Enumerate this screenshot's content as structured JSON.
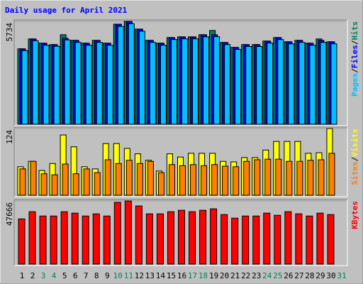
{
  "chart_data": [
    {
      "type": "bar",
      "title": "Daily usage for April 2021",
      "ylim": [
        0,
        5734
      ],
      "yticks": [
        5734
      ],
      "legend_separator": "/",
      "series": [
        {
          "name": "Hits",
          "color": "#00805c",
          "values": [
            4202,
            4752,
            4516,
            4438,
            4987,
            4673,
            4516,
            4673,
            4516,
            5576,
            5734,
            5301,
            4673,
            4516,
            4830,
            4869,
            4869,
            4987,
            5223,
            4555,
            4280,
            4438,
            4438,
            4634,
            4830,
            4595,
            4673,
            4516,
            4752,
            4595,
            null
          ]
        },
        {
          "name": "Files",
          "color": "#0000ff",
          "values": [
            4202,
            4752,
            4516,
            4438,
            4791,
            4673,
            4516,
            4673,
            4516,
            5576,
            5734,
            5301,
            4673,
            4516,
            4830,
            4869,
            4869,
            4987,
            4987,
            4555,
            4280,
            4438,
            4438,
            4634,
            4830,
            4595,
            4673,
            4516,
            4673,
            4595,
            null
          ]
        },
        {
          "name": "Pages",
          "color": "#00c0ff",
          "values": [
            4100,
            4650,
            4400,
            4340,
            4700,
            4560,
            4400,
            4560,
            4400,
            5450,
            5600,
            5180,
            4560,
            4400,
            4720,
            4760,
            4760,
            4870,
            4880,
            4440,
            4170,
            4330,
            4330,
            4520,
            4720,
            4480,
            4560,
            4400,
            4560,
            4480,
            null
          ]
        }
      ]
    },
    {
      "type": "bar",
      "ylim": [
        0,
        124
      ],
      "yticks": [
        124
      ],
      "legend_separator": "/",
      "series": [
        {
          "name": "Visits",
          "color": "#ffff00",
          "values": [
            53,
            63,
            46,
            59,
            112,
            90,
            53,
            49,
            96,
            96,
            87,
            77,
            65,
            45,
            77,
            71,
            78,
            78,
            78,
            63,
            62,
            70,
            70,
            84,
            100,
            100,
            100,
            78,
            79,
            124,
            null
          ]
        },
        {
          "name": "Sites",
          "color": "#ff8000",
          "values": [
            49,
            63,
            40,
            38,
            58,
            40,
            49,
            42,
            66,
            59,
            65,
            59,
            63,
            42,
            57,
            55,
            57,
            55,
            57,
            54,
            53,
            63,
            66,
            67,
            67,
            63,
            63,
            65,
            66,
            78,
            null
          ]
        }
      ]
    },
    {
      "type": "bar",
      "ylim": [
        0,
        47666
      ],
      "yticks": [
        47666
      ],
      "categories": [
        "1",
        "2",
        "3",
        "4",
        "5",
        "6",
        "7",
        "8",
        "9",
        "10",
        "11",
        "12",
        "13",
        "14",
        "15",
        "16",
        "17",
        "18",
        "19",
        "20",
        "21",
        "22",
        "23",
        "24",
        "25",
        "26",
        "27",
        "28",
        "29",
        "30",
        "31"
      ],
      "category_colors": [
        "#000000",
        "#000000",
        "#00805c",
        "#00805c",
        "#000000",
        "#000000",
        "#000000",
        "#000000",
        "#000000",
        "#00805c",
        "#00805c",
        "#000000",
        "#000000",
        "#000000",
        "#000000",
        "#000000",
        "#00805c",
        "#00805c",
        "#000000",
        "#000000",
        "#000000",
        "#000000",
        "#000000",
        "#00805c",
        "#00805c",
        "#000000",
        "#000000",
        "#000000",
        "#000000",
        "#000000",
        "#00805c"
      ],
      "series": [
        {
          "name": "KBytes",
          "color": "#ff0000",
          "values": [
            34127,
            39544,
            36294,
            36294,
            39544,
            38460,
            36294,
            37919,
            36294,
            46583,
            47666,
            43877,
            37919,
            37919,
            39544,
            40627,
            39544,
            40627,
            41710,
            37377,
            34669,
            36294,
            36294,
            38460,
            36835,
            39544,
            37919,
            36294,
            38460,
            37377,
            null
          ]
        }
      ]
    }
  ]
}
